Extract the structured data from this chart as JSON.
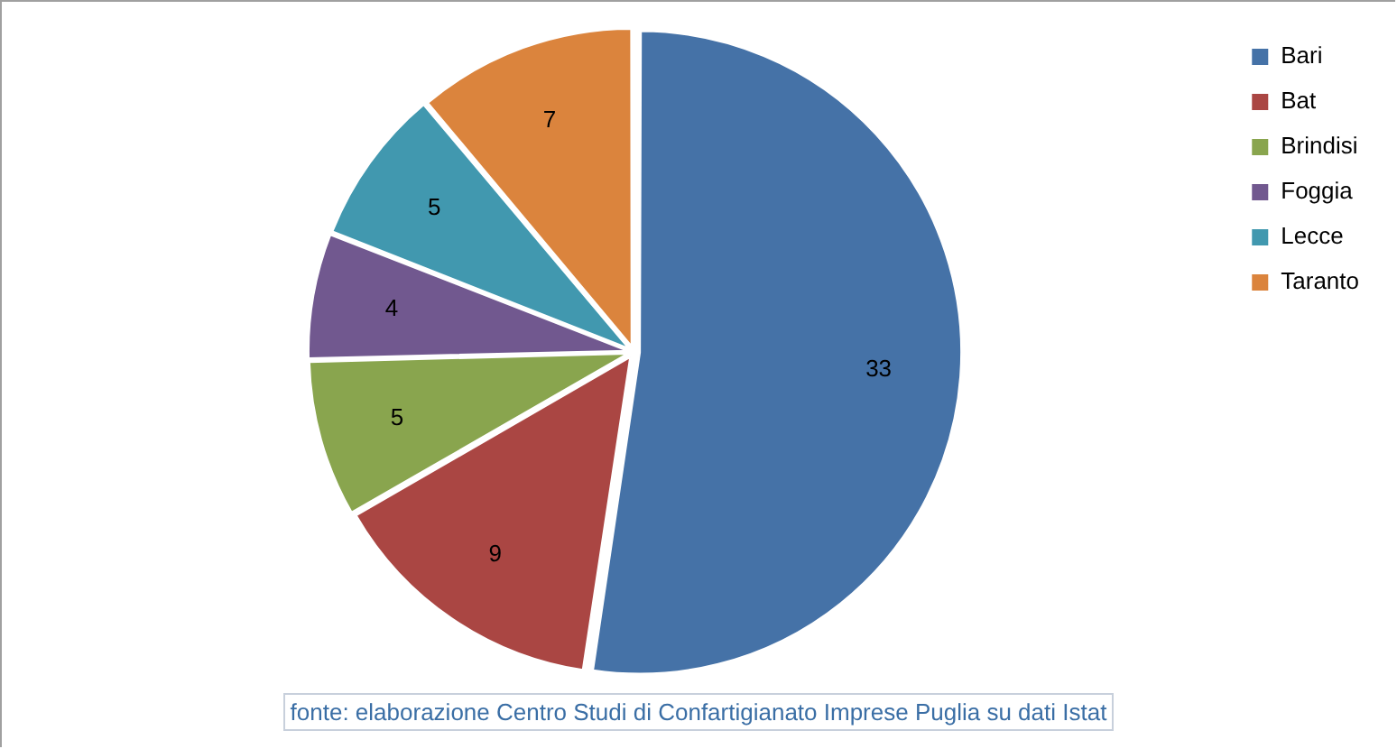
{
  "chart_data": {
    "type": "pie",
    "categories": [
      "Bari",
      "Bat",
      "Brindisi",
      "Foggia",
      "Lecce",
      "Taranto"
    ],
    "values": [
      33,
      9,
      5,
      4,
      5,
      7
    ],
    "colors": [
      "#4572a7",
      "#aa4643",
      "#89a54e",
      "#71588f",
      "#4198af",
      "#db843d"
    ],
    "data_labels": true,
    "legend": "top right",
    "annotations": [
      "fonte: elaborazione Centro Studi di Confartigianato Imprese Puglia su dati Istat"
    ]
  }
}
